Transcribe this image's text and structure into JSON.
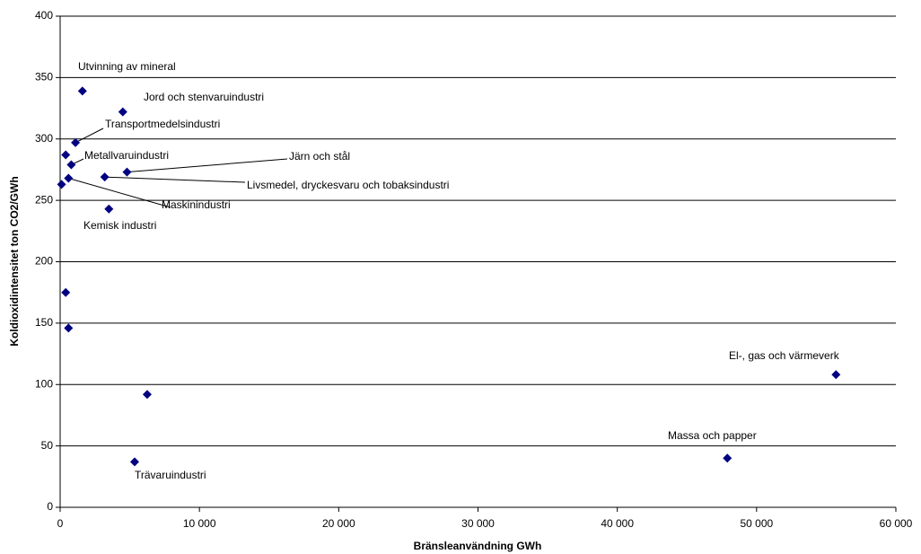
{
  "chart_data": {
    "type": "scatter",
    "x_label": "Bränsleanvändning GWh",
    "y_label": "Koldioxidintensitet ton CO2/GWh",
    "x": [
      1600,
      4500,
      1100,
      400,
      800,
      4800,
      3200,
      600,
      100,
      3500,
      400,
      600,
      6250,
      5350,
      47900,
      55700
    ],
    "values": [
      339,
      322,
      297,
      287,
      279,
      273,
      269,
      268,
      263,
      243,
      175,
      146,
      92,
      37,
      40,
      108
    ],
    "point_labels": [
      "Utvinning av mineral",
      "Jord och stenvaruindustri",
      "Transportmedelsindustri",
      null,
      "Metallvaruindustri",
      "Järn och stål",
      "Livsmedel, dryckesvaru och tobaksindustri",
      "Maskinindustri",
      null,
      "Kemisk industri",
      null,
      null,
      null,
      "Trävaruindustri",
      "Massa och papper",
      "El-, gas och värmeverk"
    ],
    "color": "#000080",
    "xlim": [
      0,
      60000
    ],
    "xticks": [
      0,
      {
        "value": 10000,
        "label": "10 000"
      },
      {
        "value": 20000,
        "label": "20 000"
      },
      {
        "value": 30000,
        "label": "30 000"
      },
      {
        "value": 40000,
        "label": "40 000"
      },
      {
        "value": 50000,
        "label": "50 000"
      },
      {
        "value": 60000,
        "label": "60 000"
      }
    ],
    "ylim": [
      0,
      400
    ],
    "yticks": [
      0,
      50,
      100,
      150,
      200,
      250,
      300,
      350,
      400
    ],
    "grid": true
  }
}
